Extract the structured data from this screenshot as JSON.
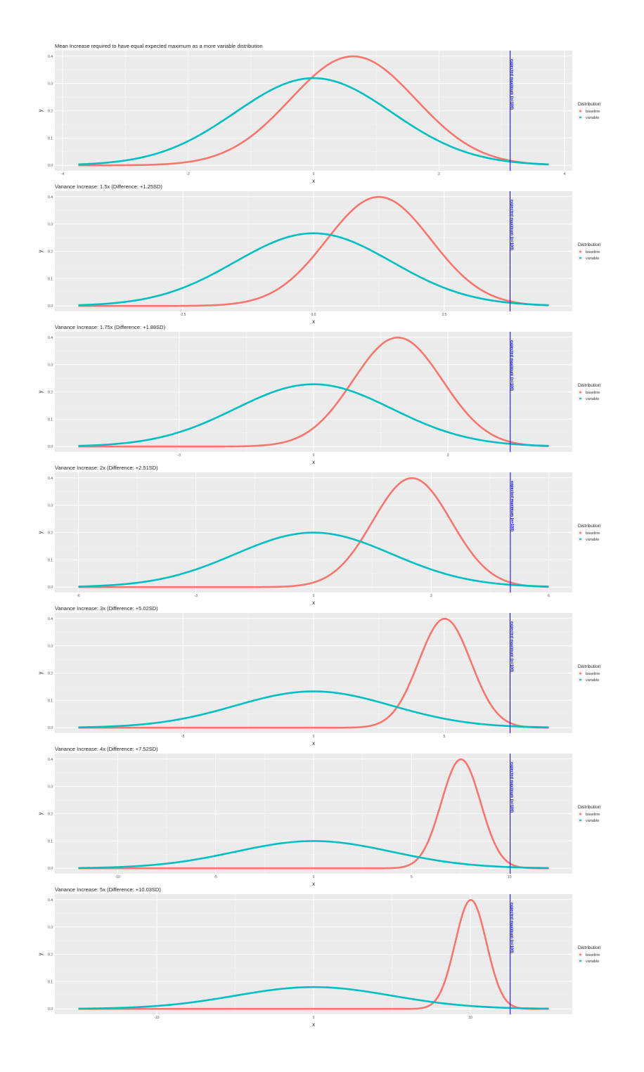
{
  "colors": {
    "baseline": "#F8766D",
    "variable": "#00BFC4",
    "expected_max_line": "#0000FF",
    "panel_bg": "#EBEBEB",
    "grid": "#FFFFFF"
  },
  "chart_data": [
    {
      "type": "line",
      "title": "Mean Increase required to have equal expected maximum as a more variable distribution",
      "xlabel": "x",
      "ylabel": "y",
      "variable_sd": 1.25,
      "baseline_mean": 0.63,
      "expected_max_x": 3.135,
      "xrange": [
        -3.75,
        3.75
      ],
      "ylim": [
        0,
        0.4
      ],
      "xticks": [
        "-4",
        "-2",
        "0",
        "2",
        "4"
      ],
      "xtick_values": [
        -4,
        -2,
        0,
        2,
        4
      ],
      "yticks": [
        "0.0",
        "0.1",
        "0.2",
        "0.3",
        "0.4"
      ],
      "line_label": "expected maximum (n=100)",
      "legend": {
        "title": "Distribution",
        "entries": [
          "baseline",
          "variable"
        ],
        "placement": "right"
      }
    },
    {
      "type": "line",
      "title": "Variance Increase: 1.5x (Difference: +1.25SD)",
      "xlabel": "x",
      "ylabel": "y",
      "variable_sd": 1.5,
      "baseline_mean": 1.25,
      "expected_max_x": 3.76,
      "xrange": [
        -4.5,
        4.5
      ],
      "ylim": [
        0,
        0.4
      ],
      "xticks": [
        "-2.5",
        "0.0",
        "2.5"
      ],
      "xtick_values": [
        -2.5,
        0,
        2.5
      ],
      "yticks": [
        "0.0",
        "0.1",
        "0.2",
        "0.3",
        "0.4"
      ],
      "line_label": "expected maximum (n=100)",
      "legend": {
        "title": "Distribution",
        "entries": [
          "baseline",
          "variable"
        ],
        "placement": "right"
      }
    },
    {
      "type": "line",
      "title": "Variance Increase: 1.75x (Difference: +1.88SD)",
      "xlabel": "x",
      "ylabel": "y",
      "variable_sd": 1.75,
      "baseline_mean": 1.88,
      "expected_max_x": 4.39,
      "xrange": [
        -5.25,
        5.25
      ],
      "ylim": [
        0,
        0.4
      ],
      "xticks": [
        "-3",
        "0",
        "3"
      ],
      "xtick_values": [
        -3,
        0,
        3
      ],
      "yticks": [
        "0.0",
        "0.1",
        "0.2",
        "0.3",
        "0.4"
      ],
      "line_label": "expected maximum (n=100)",
      "legend": {
        "title": "Distribution",
        "entries": [
          "baseline",
          "variable"
        ],
        "placement": "right"
      }
    },
    {
      "type": "line",
      "title": "Variance Increase: 2x (Difference: +2.51SD)",
      "xlabel": "x",
      "ylabel": "y",
      "variable_sd": 2,
      "baseline_mean": 2.51,
      "expected_max_x": 5.02,
      "xrange": [
        -6,
        6
      ],
      "ylim": [
        0,
        0.4
      ],
      "xticks": [
        "-6",
        "-3",
        "0",
        "3",
        "6"
      ],
      "xtick_values": [
        -6,
        -3,
        0,
        3,
        6
      ],
      "yticks": [
        "0.0",
        "0.1",
        "0.2",
        "0.3",
        "0.4"
      ],
      "line_label": "expected maximum (n=100)",
      "legend": {
        "title": "Distribution",
        "entries": [
          "baseline",
          "variable"
        ],
        "placement": "right"
      }
    },
    {
      "type": "line",
      "title": "Variance Increase: 3x (Difference: +5.02SD)",
      "xlabel": "x",
      "ylabel": "y",
      "variable_sd": 3,
      "baseline_mean": 5.02,
      "expected_max_x": 7.52,
      "xrange": [
        -9,
        9
      ],
      "ylim": [
        0,
        0.4
      ],
      "xticks": [
        "-5",
        "0",
        "5"
      ],
      "xtick_values": [
        -5,
        0,
        5
      ],
      "yticks": [
        "0.0",
        "0.1",
        "0.2",
        "0.3",
        "0.4"
      ],
      "line_label": "expected maximum (n=100)",
      "legend": {
        "title": "Distribution",
        "entries": [
          "baseline",
          "variable"
        ],
        "placement": "right"
      }
    },
    {
      "type": "line",
      "title": "Variance Increase: 4x (Difference: +7.52SD)",
      "xlabel": "x",
      "ylabel": "y",
      "variable_sd": 4,
      "baseline_mean": 7.52,
      "expected_max_x": 10.03,
      "xrange": [
        -12,
        12
      ],
      "ylim": [
        0,
        0.4
      ],
      "xticks": [
        "-10",
        "-5",
        "0",
        "5",
        "10"
      ],
      "xtick_values": [
        -10,
        -5,
        0,
        5,
        10
      ],
      "yticks": [
        "0.0",
        "0.1",
        "0.2",
        "0.3",
        "0.4"
      ],
      "line_label": "expected maximum (n=100)",
      "legend": {
        "title": "Distribution",
        "entries": [
          "baseline",
          "variable"
        ],
        "placement": "right"
      }
    },
    {
      "type": "line",
      "title": "Variance Increase: 5x (Difference: +10.03SD)",
      "xlabel": "x",
      "ylabel": "y",
      "variable_sd": 5,
      "baseline_mean": 10.03,
      "expected_max_x": 12.54,
      "xrange": [
        -15,
        15
      ],
      "ylim": [
        0,
        0.4
      ],
      "xticks": [
        "-10",
        "0",
        "10"
      ],
      "xtick_values": [
        -10,
        0,
        10
      ],
      "yticks": [
        "0.0",
        "0.1",
        "0.2",
        "0.3",
        "0.4"
      ],
      "line_label": "expected maximum (n=100)",
      "legend": {
        "title": "Distribution",
        "entries": [
          "baseline",
          "variable"
        ],
        "placement": "right"
      }
    }
  ]
}
